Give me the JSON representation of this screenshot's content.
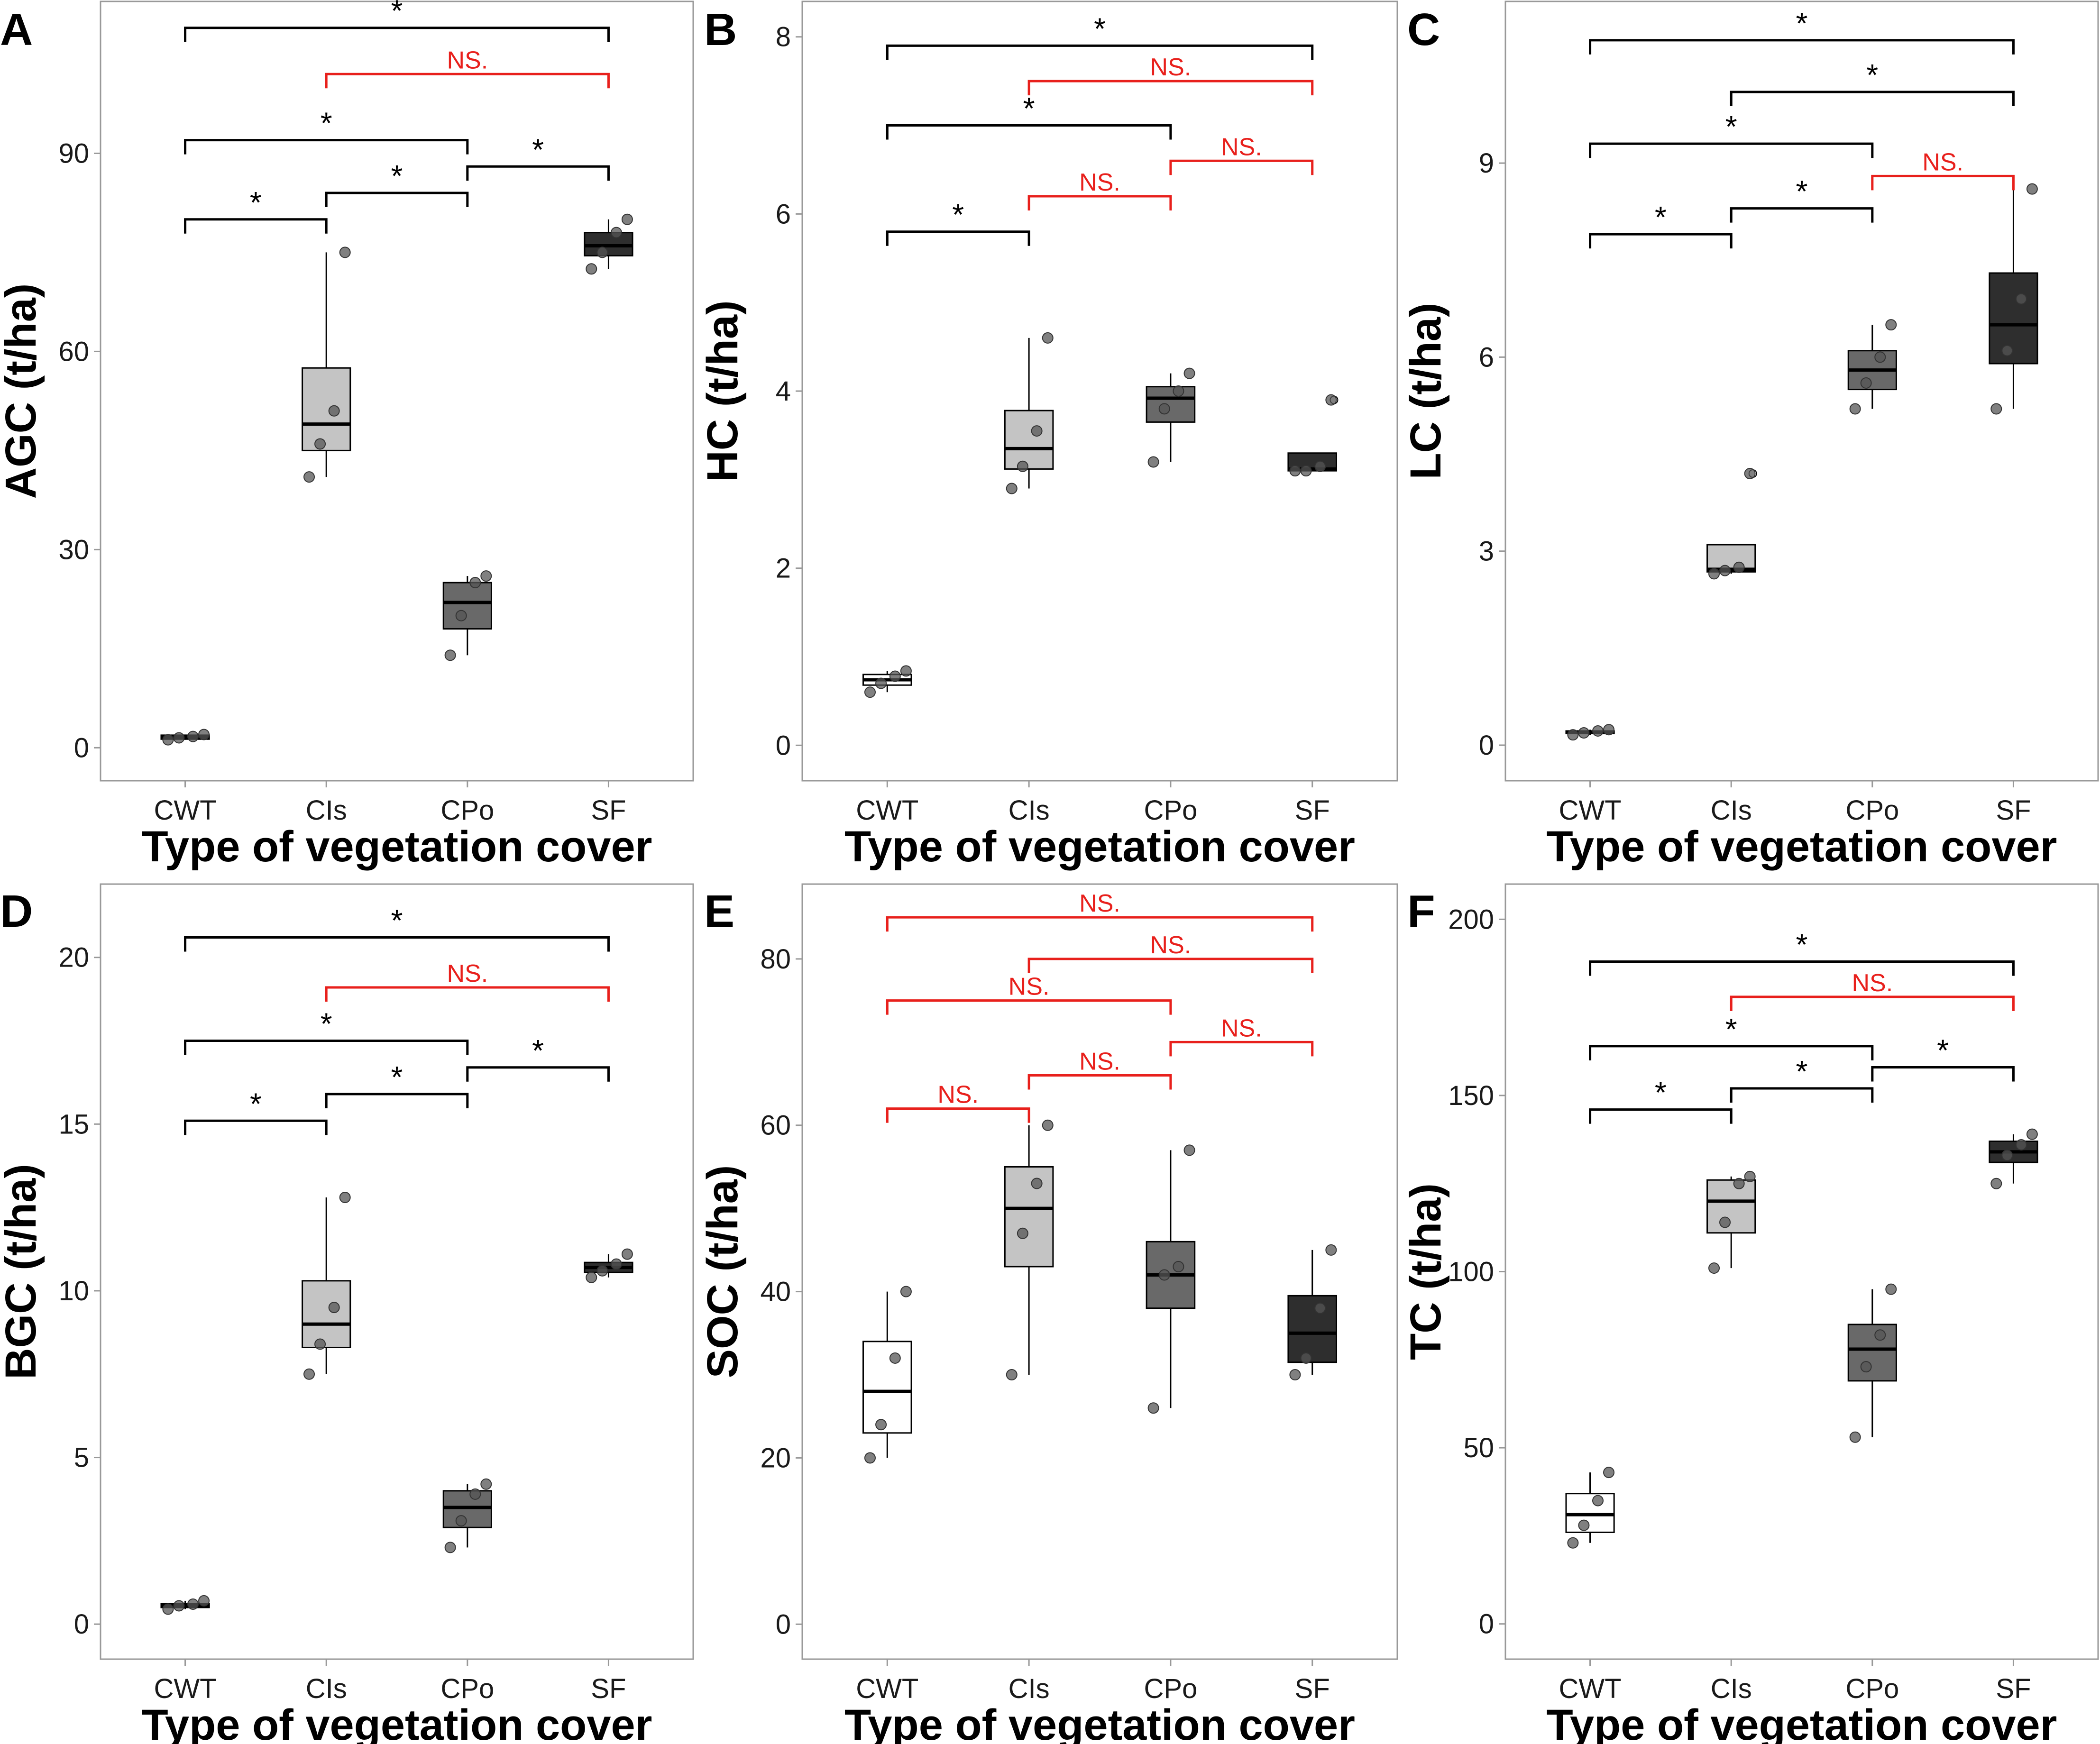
{
  "figure": {
    "xlabel": "Type of vegetation cover",
    "categories": [
      "CWT",
      "CIs",
      "CPo",
      "SF"
    ],
    "box_fills": [
      "#ffffff",
      "#c4c4c4",
      "#696969",
      "#2e2e2e"
    ],
    "sig_color": "#000000",
    "ns_color": "#e8201c",
    "axis_color": "#999999",
    "point_color": "#555555"
  },
  "chart_data": [
    {
      "panel": "A",
      "type": "box",
      "ylabel": "AGC (t/ha)",
      "ylim": [
        -5,
        113
      ],
      "yticks": [
        0,
        30,
        60,
        90
      ],
      "boxes": [
        {
          "category": "CWT",
          "q1": 1.3,
          "median": 1.6,
          "q3": 1.9,
          "lower": 1.2,
          "upper": 2.0,
          "points": [
            1.2,
            1.5,
            1.7,
            2.0
          ]
        },
        {
          "category": "CIs",
          "q1": 45,
          "median": 49,
          "q3": 57.5,
          "lower": 41,
          "upper": 75,
          "points": [
            41,
            46,
            51,
            75
          ]
        },
        {
          "category": "CPo",
          "q1": 18,
          "median": 22,
          "q3": 25,
          "lower": 14,
          "upper": 26,
          "points": [
            14,
            20,
            25,
            26
          ]
        },
        {
          "category": "SF",
          "q1": 74.5,
          "median": 76,
          "q3": 78,
          "lower": 72.5,
          "upper": 80,
          "points": [
            72.5,
            75,
            78,
            80
          ]
        }
      ],
      "comparisons": [
        {
          "from": "CWT",
          "to": "SF",
          "y": 109,
          "label": "*",
          "sig": true
        },
        {
          "from": "CIs",
          "to": "SF",
          "y": 102,
          "label": "NS.",
          "sig": false
        },
        {
          "from": "CWT",
          "to": "CPo",
          "y": 92,
          "label": "*",
          "sig": true
        },
        {
          "from": "CPo",
          "to": "SF",
          "y": 88,
          "label": "*",
          "sig": true
        },
        {
          "from": "CIs",
          "to": "CPo",
          "y": 84,
          "label": "*",
          "sig": true
        },
        {
          "from": "CWT",
          "to": "CIs",
          "y": 80,
          "label": "*",
          "sig": true
        }
      ]
    },
    {
      "panel": "B",
      "type": "box",
      "ylabel": "HC (t/ha)",
      "ylim": [
        -0.4,
        8.4
      ],
      "yticks": [
        0,
        2,
        4,
        6,
        8
      ],
      "boxes": [
        {
          "category": "CWT",
          "q1": 0.68,
          "median": 0.74,
          "q3": 0.8,
          "lower": 0.6,
          "upper": 0.84,
          "points": [
            0.6,
            0.7,
            0.78,
            0.84
          ]
        },
        {
          "category": "CIs",
          "q1": 3.12,
          "median": 3.35,
          "q3": 3.78,
          "lower": 2.9,
          "upper": 4.6,
          "points": [
            2.9,
            3.15,
            3.55,
            4.6
          ]
        },
        {
          "category": "CPo",
          "q1": 3.65,
          "median": 3.92,
          "q3": 4.05,
          "lower": 3.2,
          "upper": 4.2,
          "points": [
            3.2,
            3.8,
            4.0,
            4.2
          ]
        },
        {
          "category": "SF",
          "q1": 3.1,
          "median": 3.12,
          "q3": 3.3,
          "lower": 3.1,
          "upper": 3.3,
          "points": [
            3.1,
            3.1,
            3.15,
            3.9
          ],
          "outliers": [
            3.9
          ]
        }
      ],
      "comparisons": [
        {
          "from": "CWT",
          "to": "SF",
          "y": 7.9,
          "label": "*",
          "sig": true
        },
        {
          "from": "CIs",
          "to": "SF",
          "y": 7.5,
          "label": "NS.",
          "sig": false
        },
        {
          "from": "CWT",
          "to": "CPo",
          "y": 7.0,
          "label": "*",
          "sig": true
        },
        {
          "from": "CPo",
          "to": "SF",
          "y": 6.6,
          "label": "NS.",
          "sig": false
        },
        {
          "from": "CIs",
          "to": "CPo",
          "y": 6.2,
          "label": "NS.",
          "sig": false
        },
        {
          "from": "CWT",
          "to": "CIs",
          "y": 5.8,
          "label": "*",
          "sig": true
        }
      ]
    },
    {
      "panel": "C",
      "type": "box",
      "ylabel": "LC (t/ha)",
      "ylim": [
        -0.55,
        11.5
      ],
      "yticks": [
        0,
        3,
        6,
        9
      ],
      "boxes": [
        {
          "category": "CWT",
          "q1": 0.18,
          "median": 0.2,
          "q3": 0.22,
          "lower": 0.16,
          "upper": 0.24,
          "points": [
            0.16,
            0.19,
            0.22,
            0.24
          ]
        },
        {
          "category": "CIs",
          "q1": 2.68,
          "median": 2.72,
          "q3": 3.1,
          "lower": 2.65,
          "upper": 3.1,
          "points": [
            2.65,
            2.7,
            2.75,
            4.2
          ],
          "outliers": [
            4.2
          ]
        },
        {
          "category": "CPo",
          "q1": 5.5,
          "median": 5.8,
          "q3": 6.1,
          "lower": 5.2,
          "upper": 6.5,
          "points": [
            5.2,
            5.6,
            6.0,
            6.5
          ]
        },
        {
          "category": "SF",
          "q1": 5.9,
          "median": 6.5,
          "q3": 7.3,
          "lower": 5.2,
          "upper": 8.6,
          "points": [
            5.2,
            6.1,
            6.9,
            8.6
          ]
        }
      ],
      "comparisons": [
        {
          "from": "CWT",
          "to": "SF",
          "y": 10.9,
          "label": "*",
          "sig": true
        },
        {
          "from": "CIs",
          "to": "SF",
          "y": 10.1,
          "label": "*",
          "sig": true
        },
        {
          "from": "CWT",
          "to": "CPo",
          "y": 9.3,
          "label": "*",
          "sig": true
        },
        {
          "from": "CPo",
          "to": "SF",
          "y": 8.8,
          "label": "NS.",
          "sig": false
        },
        {
          "from": "CIs",
          "to": "CPo",
          "y": 8.3,
          "label": "*",
          "sig": true
        },
        {
          "from": "CWT",
          "to": "CIs",
          "y": 7.9,
          "label": "*",
          "sig": true
        }
      ]
    },
    {
      "panel": "D",
      "type": "box",
      "ylabel": "BGC (t/ha)",
      "ylim": [
        -1.05,
        22.2
      ],
      "yticks": [
        0,
        5,
        10,
        15,
        20
      ],
      "boxes": [
        {
          "category": "CWT",
          "q1": 0.5,
          "median": 0.55,
          "q3": 0.62,
          "lower": 0.45,
          "upper": 0.7,
          "points": [
            0.45,
            0.55,
            0.6,
            0.7
          ]
        },
        {
          "category": "CIs",
          "q1": 8.3,
          "median": 9.0,
          "q3": 10.3,
          "lower": 7.5,
          "upper": 12.8,
          "points": [
            7.5,
            8.4,
            9.5,
            12.8
          ]
        },
        {
          "category": "CPo",
          "q1": 2.9,
          "median": 3.5,
          "q3": 4.0,
          "lower": 2.3,
          "upper": 4.2,
          "points": [
            2.3,
            3.1,
            3.9,
            4.2
          ]
        },
        {
          "category": "SF",
          "q1": 10.55,
          "median": 10.7,
          "q3": 10.85,
          "lower": 10.4,
          "upper": 11.1,
          "points": [
            10.4,
            10.6,
            10.8,
            11.1
          ]
        }
      ],
      "comparisons": [
        {
          "from": "CWT",
          "to": "SF",
          "y": 20.6,
          "label": "*",
          "sig": true
        },
        {
          "from": "CIs",
          "to": "SF",
          "y": 19.1,
          "label": "NS.",
          "sig": false
        },
        {
          "from": "CWT",
          "to": "CPo",
          "y": 17.5,
          "label": "*",
          "sig": true
        },
        {
          "from": "CPo",
          "to": "SF",
          "y": 16.7,
          "label": "*",
          "sig": true
        },
        {
          "from": "CIs",
          "to": "CPo",
          "y": 15.9,
          "label": "*",
          "sig": true
        },
        {
          "from": "CWT",
          "to": "CIs",
          "y": 15.1,
          "label": "*",
          "sig": true
        }
      ]
    },
    {
      "panel": "E",
      "type": "box",
      "ylabel": "SOC (t/ha)",
      "ylim": [
        -4.2,
        89
      ],
      "yticks": [
        0,
        20,
        40,
        60,
        80
      ],
      "boxes": [
        {
          "category": "CWT",
          "q1": 23,
          "median": 28,
          "q3": 34,
          "lower": 20,
          "upper": 40,
          "points": [
            20,
            24,
            32,
            40
          ]
        },
        {
          "category": "CIs",
          "q1": 43,
          "median": 50,
          "q3": 55,
          "lower": 30,
          "upper": 60,
          "points": [
            30,
            47,
            53,
            60
          ]
        },
        {
          "category": "CPo",
          "q1": 38,
          "median": 42,
          "q3": 46,
          "lower": 26,
          "upper": 57,
          "points": [
            26,
            42,
            43,
            57
          ]
        },
        {
          "category": "SF",
          "q1": 31.5,
          "median": 35,
          "q3": 39.5,
          "lower": 30,
          "upper": 45,
          "points": [
            30,
            32,
            38,
            45
          ]
        }
      ],
      "comparisons": [
        {
          "from": "CWT",
          "to": "SF",
          "y": 85,
          "label": "NS.",
          "sig": false
        },
        {
          "from": "CIs",
          "to": "SF",
          "y": 80,
          "label": "NS.",
          "sig": false
        },
        {
          "from": "CWT",
          "to": "CPo",
          "y": 75,
          "label": "NS.",
          "sig": false
        },
        {
          "from": "CPo",
          "to": "SF",
          "y": 70,
          "label": "NS.",
          "sig": false
        },
        {
          "from": "CIs",
          "to": "CPo",
          "y": 66,
          "label": "NS.",
          "sig": false
        },
        {
          "from": "CWT",
          "to": "CIs",
          "y": 62,
          "label": "NS.",
          "sig": false
        }
      ]
    },
    {
      "panel": "F",
      "type": "box",
      "ylabel": "TC (t/ha)",
      "ylim": [
        -10,
        210
      ],
      "yticks": [
        0,
        50,
        100,
        150,
        200
      ],
      "boxes": [
        {
          "category": "CWT",
          "q1": 26,
          "median": 31,
          "q3": 37,
          "lower": 23,
          "upper": 43,
          "points": [
            23,
            28,
            35,
            43
          ]
        },
        {
          "category": "CIs",
          "q1": 111,
          "median": 120,
          "q3": 126,
          "lower": 101,
          "upper": 127,
          "points": [
            101,
            114,
            125,
            127
          ]
        },
        {
          "category": "CPo",
          "q1": 69,
          "median": 78,
          "q3": 85,
          "lower": 53,
          "upper": 95,
          "points": [
            53,
            73,
            82,
            95
          ]
        },
        {
          "category": "SF",
          "q1": 131,
          "median": 134,
          "q3": 137,
          "lower": 125,
          "upper": 139,
          "points": [
            125,
            133,
            136,
            139
          ]
        }
      ],
      "comparisons": [
        {
          "from": "CWT",
          "to": "SF",
          "y": 188,
          "label": "*",
          "sig": true
        },
        {
          "from": "CIs",
          "to": "SF",
          "y": 178,
          "label": "NS.",
          "sig": false
        },
        {
          "from": "CWT",
          "to": "CPo",
          "y": 164,
          "label": "*",
          "sig": true
        },
        {
          "from": "CPo",
          "to": "SF",
          "y": 158,
          "label": "*",
          "sig": true
        },
        {
          "from": "CIs",
          "to": "CPo",
          "y": 152,
          "label": "*",
          "sig": true
        },
        {
          "from": "CWT",
          "to": "CIs",
          "y": 146,
          "label": "*",
          "sig": true
        }
      ]
    }
  ]
}
